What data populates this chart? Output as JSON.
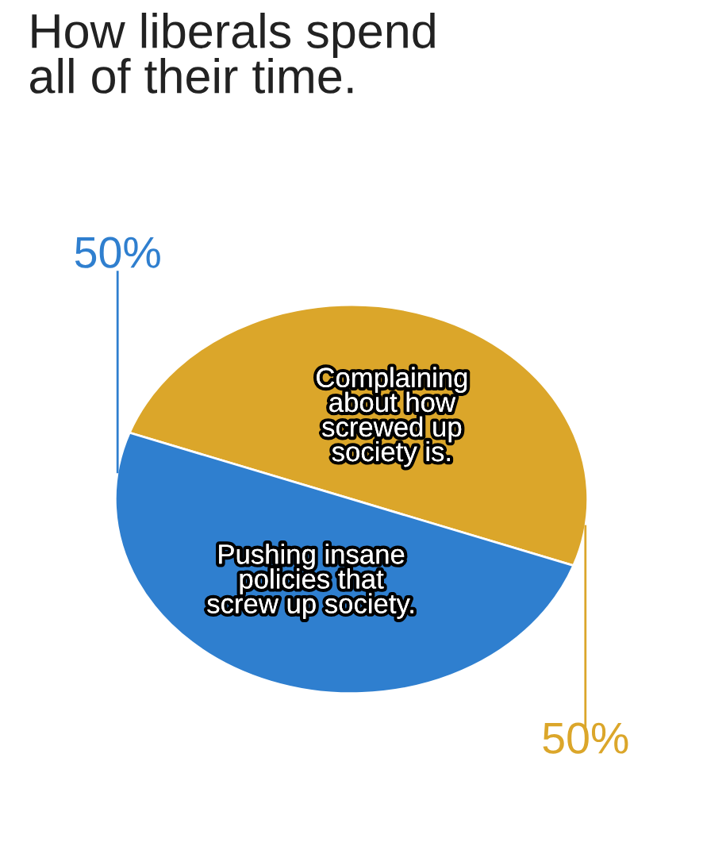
{
  "chart_data": {
    "type": "pie",
    "title": "How liberals spend\nall of their time.",
    "categories": [
      "Complaining\nabout how\nscrewed up\nsociety is.",
      "Pushing insane\npolicies that\nscrew up society."
    ],
    "values": [
      50,
      50
    ],
    "colors": [
      "#dba62a",
      "#2f7fcf"
    ],
    "value_labels": [
      "50%",
      "50%"
    ]
  }
}
